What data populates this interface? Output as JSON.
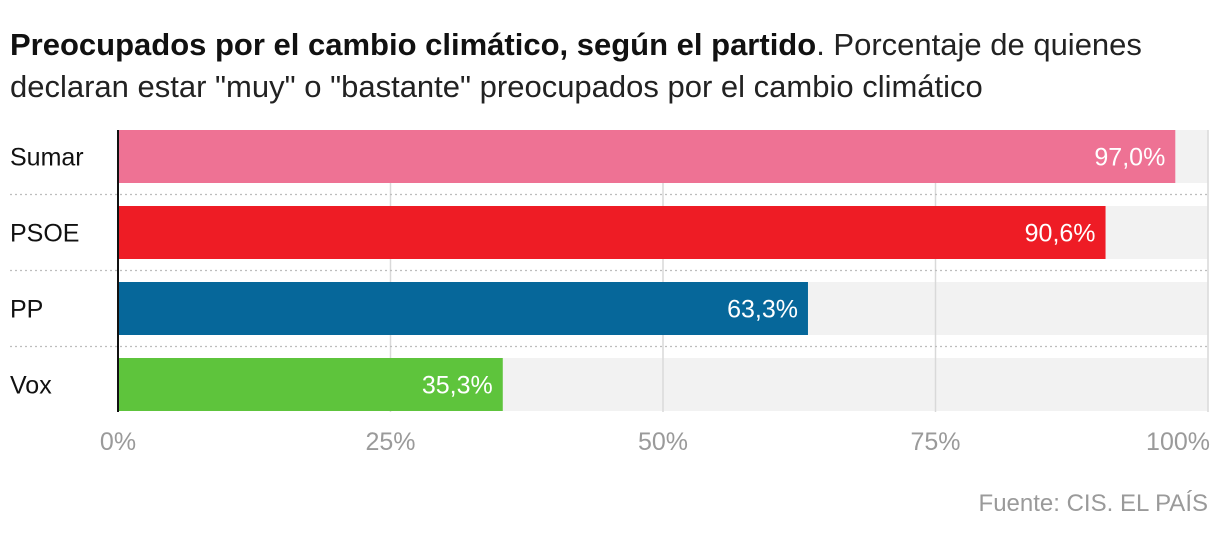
{
  "title": {
    "bold": "Preocupados por el cambio climático, según el partido",
    "rest": ". Porcentaje de quienes declaran estar \"muy\" o \"bastante\" preocupados por el cambio climático"
  },
  "source": "Fuente: CIS. EL PAÍS",
  "chart_data": {
    "type": "bar",
    "orientation": "horizontal",
    "categories": [
      "Sumar",
      "PSOE",
      "PP",
      "Vox"
    ],
    "values": [
      97.0,
      90.6,
      63.3,
      35.3
    ],
    "value_labels": [
      "97,0%",
      "90,6%",
      "63,3%",
      "35,3%"
    ],
    "colors": [
      "#ee7294",
      "#ee1c25",
      "#06679a",
      "#5ec43c"
    ],
    "background_color": "#f2f2f2",
    "xlim": [
      0,
      100
    ],
    "ticks": [
      0,
      25,
      50,
      75,
      100
    ],
    "tick_labels": [
      "0%",
      "25%",
      "50%",
      "75%",
      "100%"
    ],
    "grid": true
  }
}
